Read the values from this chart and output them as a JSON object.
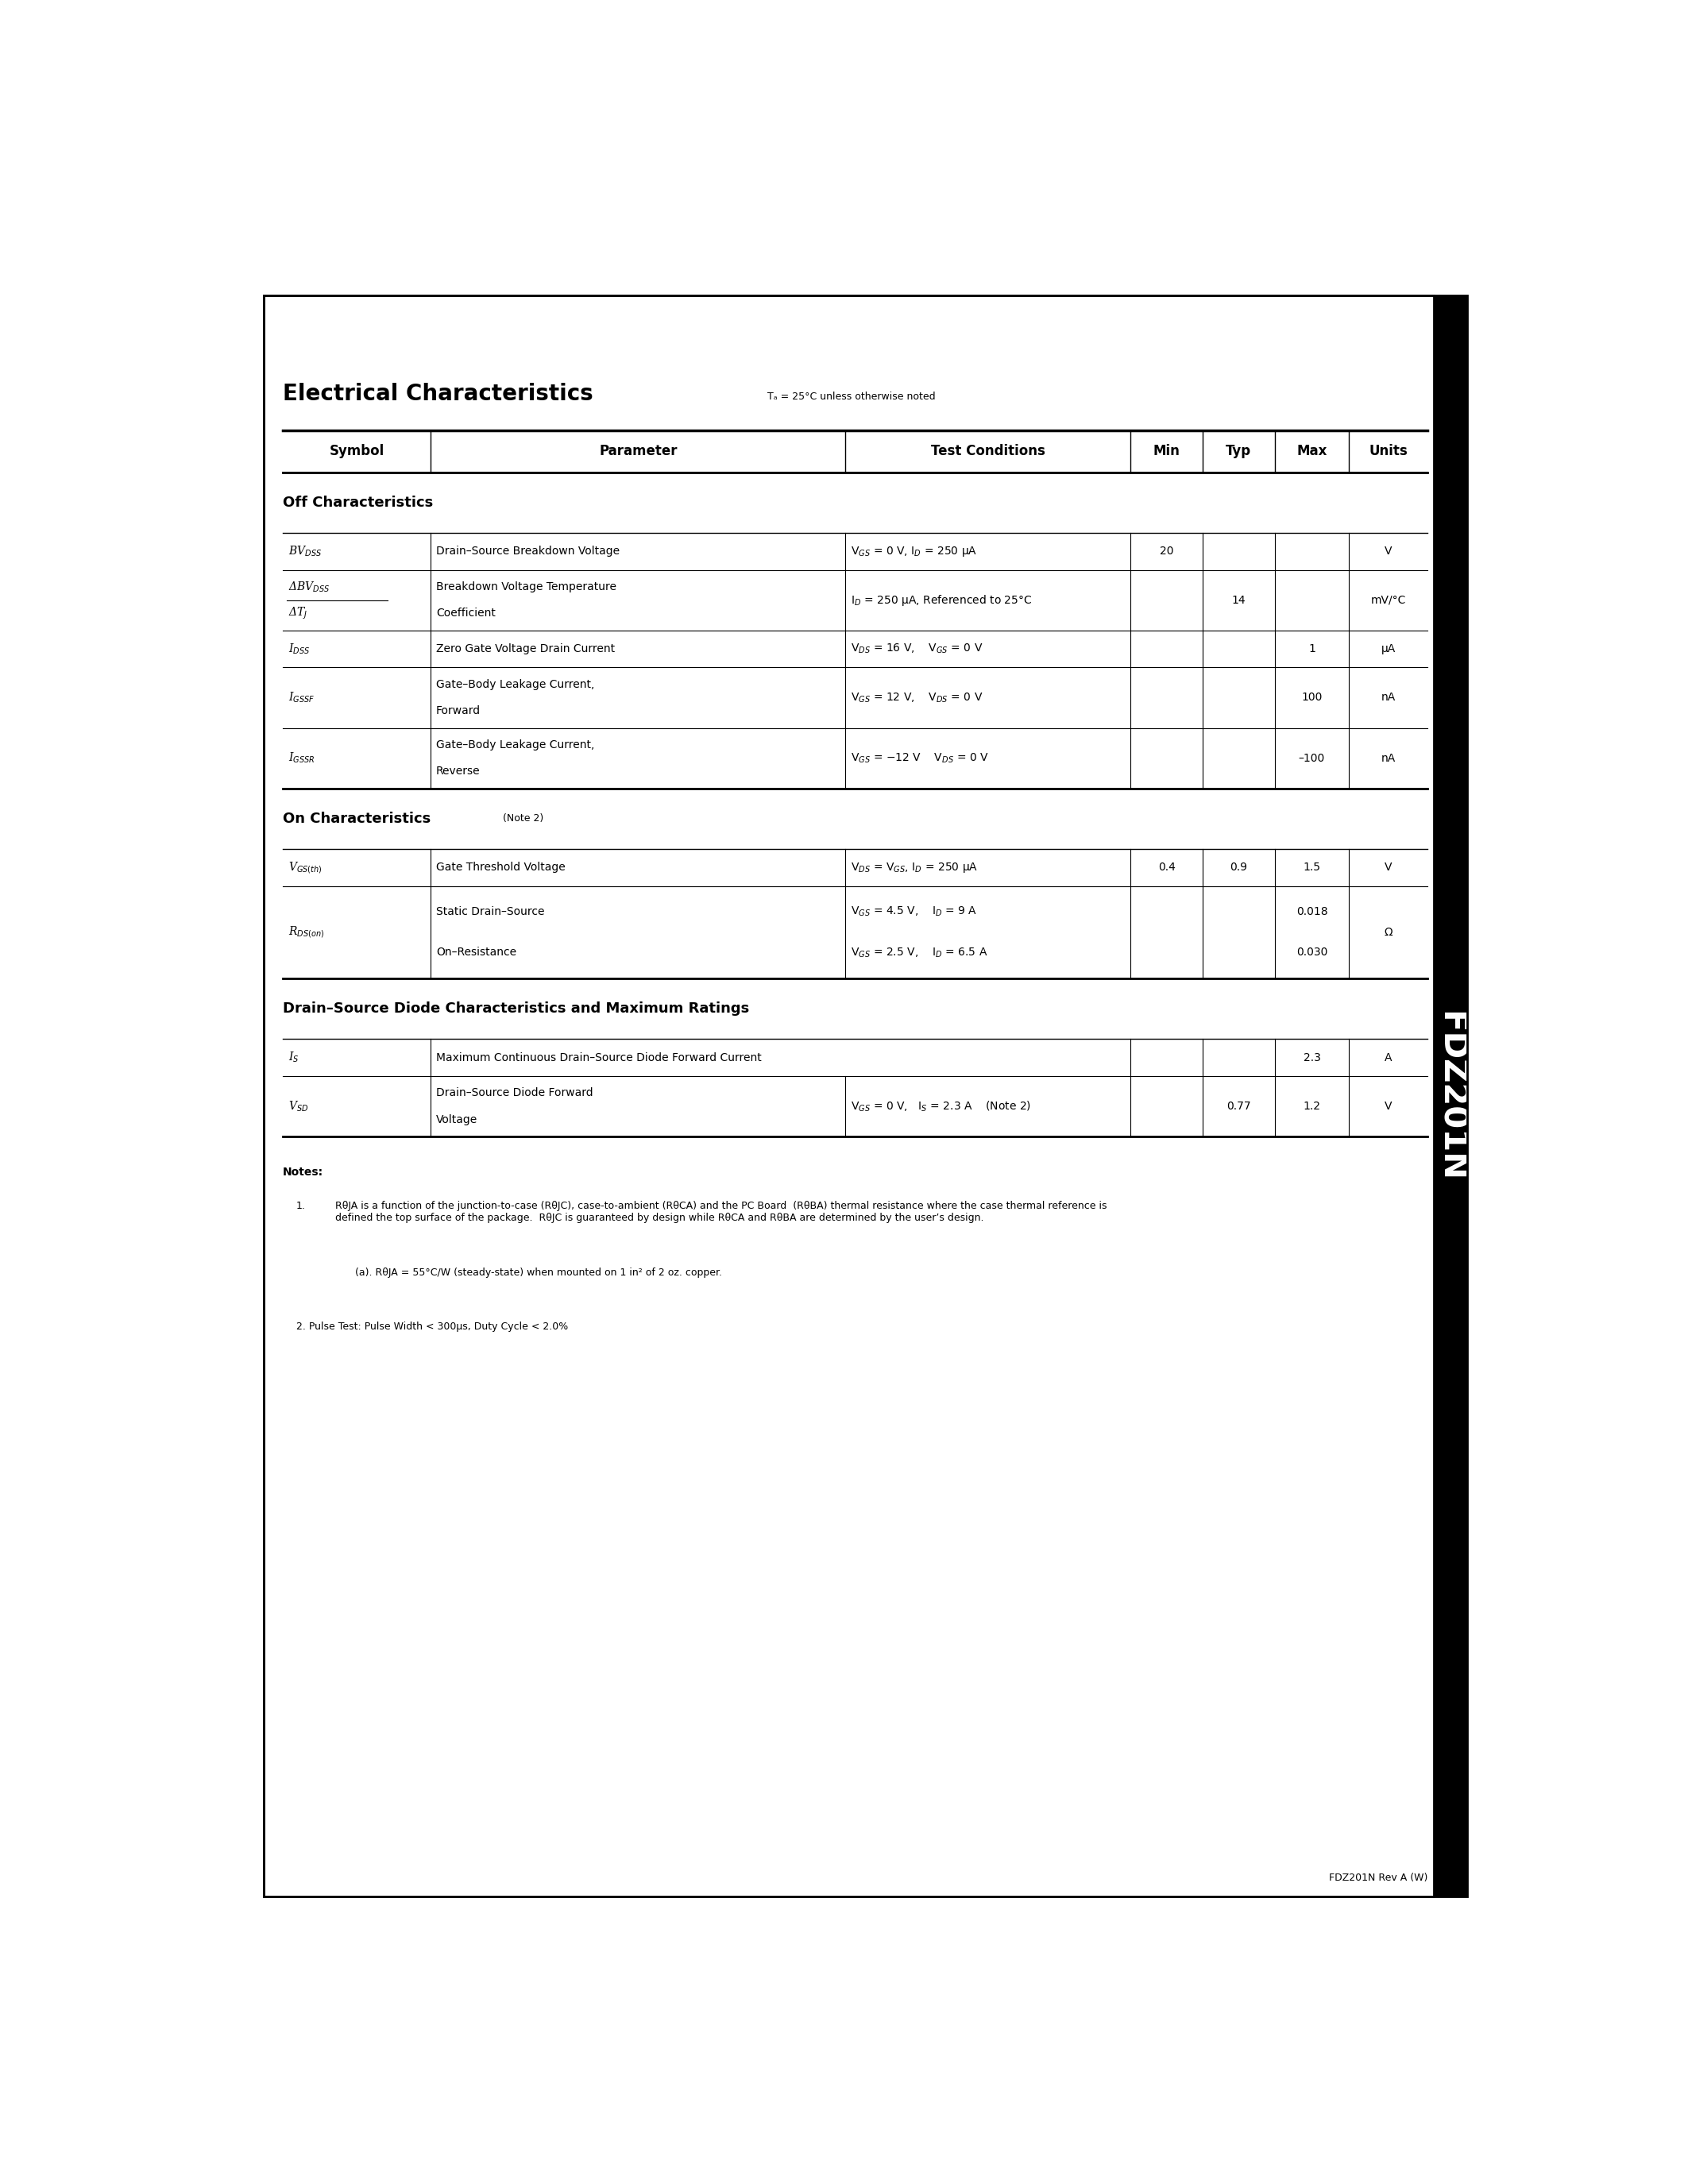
{
  "footer_text": "FDZ201N Rev A (W)",
  "section_title": "Electrical Characteristics",
  "section_subtitle": "Tₐ = 25°C unless otherwise noted",
  "off_char_label": "Off Characteristics",
  "on_char_label": "On Characteristics",
  "on_char_note": "(Note 2)",
  "diode_char_label": "Drain–Source Diode Characteristics and Maximum Ratings",
  "sidebar_text": "FDZ201N",
  "bg_color": "#ffffff",
  "border_color": "#000000"
}
